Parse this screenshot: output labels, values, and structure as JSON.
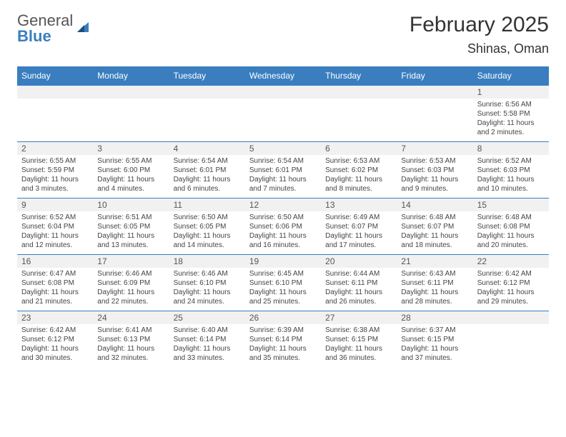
{
  "logo": {
    "line1": "General",
    "line2": "Blue"
  },
  "title": "February 2025",
  "location": "Shinas, Oman",
  "weekdays": [
    "Sunday",
    "Monday",
    "Tuesday",
    "Wednesday",
    "Thursday",
    "Friday",
    "Saturday"
  ],
  "colors": {
    "header_bg": "#3a7ebf",
    "header_text": "#ffffff",
    "daynum_bg": "#f1f1f1",
    "text": "#444444",
    "accent": "#3a7ebf"
  },
  "weeks": [
    [
      null,
      null,
      null,
      null,
      null,
      null,
      {
        "n": "1",
        "sunrise": "Sunrise: 6:56 AM",
        "sunset": "Sunset: 5:58 PM",
        "day": "Daylight: 11 hours and 2 minutes."
      }
    ],
    [
      {
        "n": "2",
        "sunrise": "Sunrise: 6:55 AM",
        "sunset": "Sunset: 5:59 PM",
        "day": "Daylight: 11 hours and 3 minutes."
      },
      {
        "n": "3",
        "sunrise": "Sunrise: 6:55 AM",
        "sunset": "Sunset: 6:00 PM",
        "day": "Daylight: 11 hours and 4 minutes."
      },
      {
        "n": "4",
        "sunrise": "Sunrise: 6:54 AM",
        "sunset": "Sunset: 6:01 PM",
        "day": "Daylight: 11 hours and 6 minutes."
      },
      {
        "n": "5",
        "sunrise": "Sunrise: 6:54 AM",
        "sunset": "Sunset: 6:01 PM",
        "day": "Daylight: 11 hours and 7 minutes."
      },
      {
        "n": "6",
        "sunrise": "Sunrise: 6:53 AM",
        "sunset": "Sunset: 6:02 PM",
        "day": "Daylight: 11 hours and 8 minutes."
      },
      {
        "n": "7",
        "sunrise": "Sunrise: 6:53 AM",
        "sunset": "Sunset: 6:03 PM",
        "day": "Daylight: 11 hours and 9 minutes."
      },
      {
        "n": "8",
        "sunrise": "Sunrise: 6:52 AM",
        "sunset": "Sunset: 6:03 PM",
        "day": "Daylight: 11 hours and 10 minutes."
      }
    ],
    [
      {
        "n": "9",
        "sunrise": "Sunrise: 6:52 AM",
        "sunset": "Sunset: 6:04 PM",
        "day": "Daylight: 11 hours and 12 minutes."
      },
      {
        "n": "10",
        "sunrise": "Sunrise: 6:51 AM",
        "sunset": "Sunset: 6:05 PM",
        "day": "Daylight: 11 hours and 13 minutes."
      },
      {
        "n": "11",
        "sunrise": "Sunrise: 6:50 AM",
        "sunset": "Sunset: 6:05 PM",
        "day": "Daylight: 11 hours and 14 minutes."
      },
      {
        "n": "12",
        "sunrise": "Sunrise: 6:50 AM",
        "sunset": "Sunset: 6:06 PM",
        "day": "Daylight: 11 hours and 16 minutes."
      },
      {
        "n": "13",
        "sunrise": "Sunrise: 6:49 AM",
        "sunset": "Sunset: 6:07 PM",
        "day": "Daylight: 11 hours and 17 minutes."
      },
      {
        "n": "14",
        "sunrise": "Sunrise: 6:48 AM",
        "sunset": "Sunset: 6:07 PM",
        "day": "Daylight: 11 hours and 18 minutes."
      },
      {
        "n": "15",
        "sunrise": "Sunrise: 6:48 AM",
        "sunset": "Sunset: 6:08 PM",
        "day": "Daylight: 11 hours and 20 minutes."
      }
    ],
    [
      {
        "n": "16",
        "sunrise": "Sunrise: 6:47 AM",
        "sunset": "Sunset: 6:08 PM",
        "day": "Daylight: 11 hours and 21 minutes."
      },
      {
        "n": "17",
        "sunrise": "Sunrise: 6:46 AM",
        "sunset": "Sunset: 6:09 PM",
        "day": "Daylight: 11 hours and 22 minutes."
      },
      {
        "n": "18",
        "sunrise": "Sunrise: 6:46 AM",
        "sunset": "Sunset: 6:10 PM",
        "day": "Daylight: 11 hours and 24 minutes."
      },
      {
        "n": "19",
        "sunrise": "Sunrise: 6:45 AM",
        "sunset": "Sunset: 6:10 PM",
        "day": "Daylight: 11 hours and 25 minutes."
      },
      {
        "n": "20",
        "sunrise": "Sunrise: 6:44 AM",
        "sunset": "Sunset: 6:11 PM",
        "day": "Daylight: 11 hours and 26 minutes."
      },
      {
        "n": "21",
        "sunrise": "Sunrise: 6:43 AM",
        "sunset": "Sunset: 6:11 PM",
        "day": "Daylight: 11 hours and 28 minutes."
      },
      {
        "n": "22",
        "sunrise": "Sunrise: 6:42 AM",
        "sunset": "Sunset: 6:12 PM",
        "day": "Daylight: 11 hours and 29 minutes."
      }
    ],
    [
      {
        "n": "23",
        "sunrise": "Sunrise: 6:42 AM",
        "sunset": "Sunset: 6:12 PM",
        "day": "Daylight: 11 hours and 30 minutes."
      },
      {
        "n": "24",
        "sunrise": "Sunrise: 6:41 AM",
        "sunset": "Sunset: 6:13 PM",
        "day": "Daylight: 11 hours and 32 minutes."
      },
      {
        "n": "25",
        "sunrise": "Sunrise: 6:40 AM",
        "sunset": "Sunset: 6:14 PM",
        "day": "Daylight: 11 hours and 33 minutes."
      },
      {
        "n": "26",
        "sunrise": "Sunrise: 6:39 AM",
        "sunset": "Sunset: 6:14 PM",
        "day": "Daylight: 11 hours and 35 minutes."
      },
      {
        "n": "27",
        "sunrise": "Sunrise: 6:38 AM",
        "sunset": "Sunset: 6:15 PM",
        "day": "Daylight: 11 hours and 36 minutes."
      },
      {
        "n": "28",
        "sunrise": "Sunrise: 6:37 AM",
        "sunset": "Sunset: 6:15 PM",
        "day": "Daylight: 11 hours and 37 minutes."
      },
      null
    ]
  ]
}
